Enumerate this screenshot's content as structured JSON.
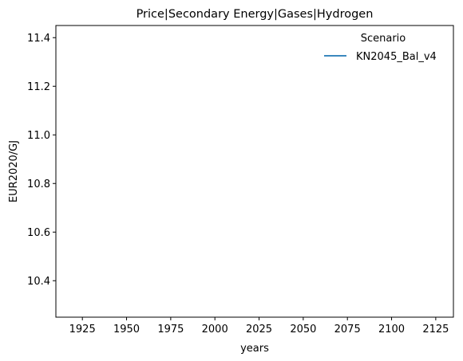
{
  "chart_data": {
    "type": "line",
    "title": "Price|Secondary Energy|Gases|Hydrogen",
    "xlabel": "years",
    "ylabel": "EUR2020/GJ",
    "xlim": [
      1910,
      2135
    ],
    "ylim": [
      10.25,
      11.45
    ],
    "xticks": [
      1925,
      1950,
      1975,
      2000,
      2025,
      2050,
      2075,
      2100,
      2125
    ],
    "yticks": [
      10.4,
      10.6,
      10.8,
      11.0,
      11.2,
      11.4
    ],
    "ytick_labels": [
      "10.4",
      "10.6",
      "10.8",
      "11.0",
      "11.2",
      "11.4"
    ],
    "grid": false,
    "legend": {
      "title": "Scenario",
      "placement": "top-right"
    },
    "series": [
      {
        "name": "KN2045_Bal_v4",
        "color": "#1f77b4",
        "x": [],
        "y": []
      }
    ]
  }
}
